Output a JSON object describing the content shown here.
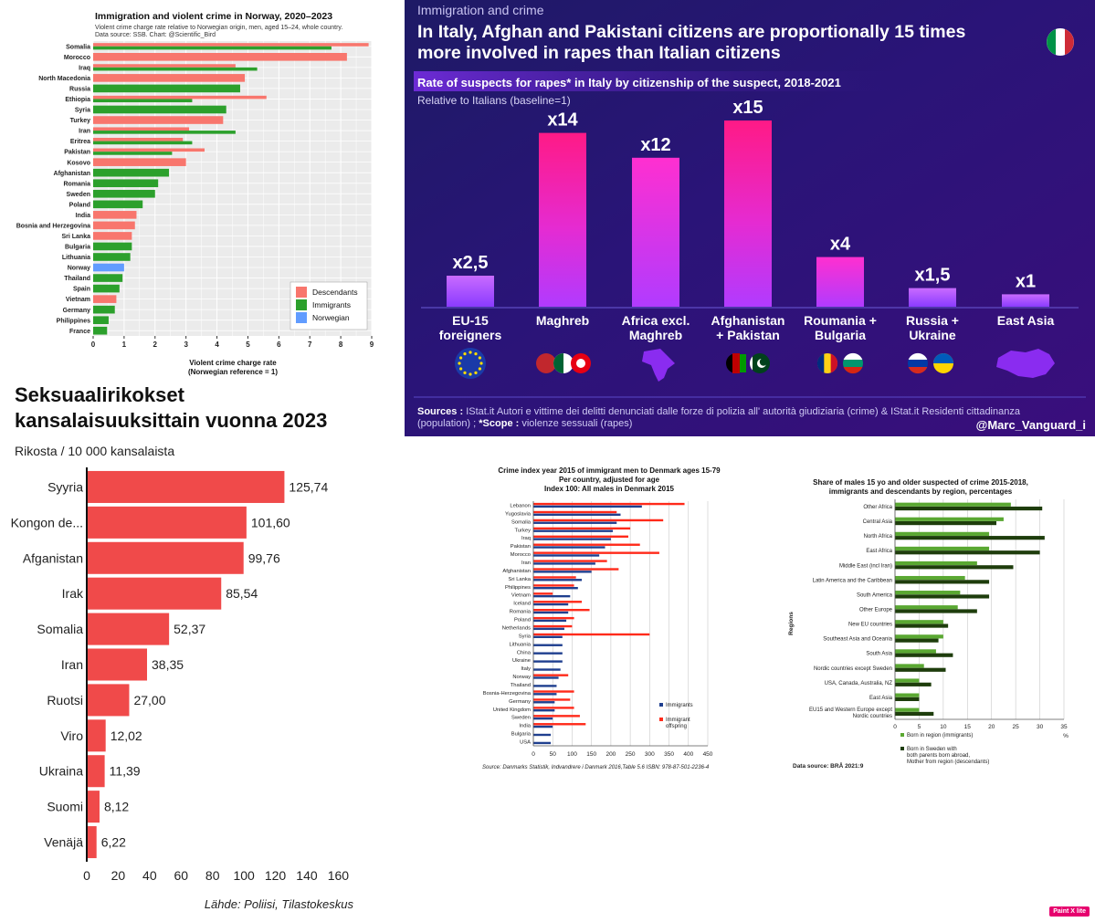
{
  "charts": {
    "norway": {
      "type": "bar",
      "title": "Immigration and violent crime in Norway, 2020–2023",
      "subtitle": "Violent crime charge rate relative to Norwegian origin, men, aged 15–24, whole country.",
      "source": "Data source: SSB.  Chart: @Scientific_Bird",
      "categories": [
        "Somalia",
        "Morocco",
        "Iraq",
        "North Macedonia",
        "Russia",
        "Ethiopia",
        "Syria",
        "Turkey",
        "Iran",
        "Eritrea",
        "Pakistan",
        "Kosovo",
        "Afghanistan",
        "Romania",
        "Sweden",
        "Poland",
        "India",
        "Bosnia and Herzegovina",
        "Sri Lanka",
        "Bulgaria",
        "Lithuania",
        "Norway",
        "Thailand",
        "Spain",
        "Vietnam",
        "Germany",
        "Philippines",
        "France"
      ],
      "series": [
        {
          "name": "Descendants",
          "color": "#f8766d",
          "values": [
            8.9,
            8.2,
            4.6,
            4.9,
            null,
            5.6,
            null,
            4.2,
            3.1,
            2.9,
            3.6,
            3.0,
            null,
            null,
            null,
            null,
            1.4,
            1.35,
            1.25,
            null,
            null,
            null,
            null,
            null,
            0.75,
            null,
            null,
            null
          ]
        },
        {
          "name": "Immigrants",
          "color": "#2ca02c",
          "values": [
            7.7,
            null,
            5.3,
            null,
            4.75,
            3.2,
            4.3,
            null,
            4.6,
            3.2,
            2.55,
            null,
            2.45,
            2.1,
            2.0,
            1.6,
            null,
            null,
            null,
            1.25,
            1.2,
            null,
            0.95,
            0.85,
            null,
            0.7,
            0.5,
            0.45
          ]
        },
        {
          "name": "Norwegian",
          "color": "#619cff",
          "values": [
            null,
            null,
            null,
            null,
            null,
            null,
            null,
            null,
            null,
            null,
            null,
            null,
            null,
            null,
            null,
            null,
            null,
            null,
            null,
            null,
            null,
            1.0,
            null,
            null,
            null,
            null,
            null,
            null
          ]
        }
      ],
      "xticks": [
        0,
        1,
        2,
        3,
        4,
        5,
        6,
        7,
        8,
        9
      ],
      "xlim": [
        0,
        9
      ],
      "xlabel": "Violent crime charge rate",
      "xlabel2": "(Norwegian reference = 1)",
      "legend": "bottom-right"
    },
    "italy": {
      "type": "bar",
      "header": "Immigration and crime",
      "title_line1": "In Italy, Afghan and Pakistani citizens are proportionally 15 times",
      "title_line2": "more involved in rapes than Italian citizens",
      "subtitle": "Rate of suspects for rapes* in Italy by citizenship of the suspect, 2018-2021",
      "subtitle2": "Relative to Italians (baseline=1)",
      "categories": [
        [
          "EU-15",
          "foreigners"
        ],
        [
          "Maghreb"
        ],
        [
          "Africa excl.",
          "Maghreb"
        ],
        [
          "Afghanistan",
          "+ Pakistan"
        ],
        [
          "Roumania +",
          "Bulgaria"
        ],
        [
          "Russia +",
          "Ukraine"
        ],
        [
          "East Asia"
        ]
      ],
      "values": [
        2.5,
        14,
        12,
        15,
        4,
        1.5,
        1
      ],
      "labels": [
        "x2,5",
        "x14",
        "x12",
        "x15",
        "x4",
        "x1,5",
        "x1"
      ],
      "icons": [
        "eu-flag-icon",
        "maghreb-flags-icon",
        "africa-map-icon",
        "afghanistan-pakistan-flags-icon",
        "romania-bulgaria-flags-icon",
        "russia-ukraine-flags-icon",
        "east-asia-map-icon"
      ],
      "sources_label": "Sources :",
      "sources_text": "IStat.it Autori e vittime dei delitti denunciati dalle forze di polizia all' autorità giudiziaria (crime) & IStat.it Residenti cittadinanza",
      "sources_text2": "(population) ;",
      "scope_label": "*Scope :",
      "scope_text": "violenze sessuali (rapes)",
      "handle": "@Marc_Vanguard_i"
    },
    "finland": {
      "type": "bar",
      "title_line1": "Seksuaalirikokset",
      "title_line2": "kansalaisuuksittain vuonna 2023",
      "subtitle": "Rikosta / 10 000 kansalaista",
      "categories": [
        "Syyria",
        "Kongon de...",
        "Afganistan",
        "Irak",
        "Somalia",
        "Iran",
        "Ruotsi",
        "Viro",
        "Ukraina",
        "Suomi",
        "Venäjä"
      ],
      "values": [
        125.74,
        101.6,
        99.76,
        85.54,
        52.37,
        38.35,
        27.0,
        12.02,
        11.39,
        8.12,
        6.22
      ],
      "value_labels": [
        "125,74",
        "101,60",
        "99,76",
        "85,54",
        "52,37",
        "38,35",
        "27,00",
        "12,02",
        "11,39",
        "8,12",
        "6,22"
      ],
      "xticks": [
        0,
        20,
        40,
        60,
        80,
        100,
        120,
        140,
        160
      ],
      "xlim": [
        0,
        165
      ],
      "source": "Lähde: Poliisi, Tilastokeskus",
      "color": "#f04a4a"
    },
    "denmark": {
      "type": "bar",
      "title_line1": "Crime index year 2015 of immigrant men to Denmark ages 15-79",
      "title_line2": "Per country, adjusted for age",
      "title_line3": "Index 100: All males in Denmark 2015",
      "categories": [
        "Lebanon",
        "Yugoslavia",
        "Somalia",
        "Turkey",
        "Iraq",
        "Pakistan",
        "Morocco",
        "Iran",
        "Afghanistan",
        "Sri Lanka",
        "Philippines",
        "Vietnam",
        "Iceland",
        "Romania",
        "Poland",
        "Netherlands",
        "Syria",
        "Lithuania",
        "China",
        "Ukraine",
        "Italy",
        "Norway",
        "Thailand",
        "Bosnia-Herzegovina",
        "Germany",
        "United Kingdom",
        "Sweden",
        "India",
        "Bulgaria",
        "USA"
      ],
      "series": [
        {
          "name": "Immigrants",
          "color": "#1f3f8f",
          "values": [
            280,
            225,
            215,
            205,
            200,
            185,
            170,
            160,
            150,
            125,
            115,
            95,
            90,
            90,
            85,
            80,
            75,
            75,
            75,
            75,
            70,
            65,
            60,
            60,
            55,
            55,
            50,
            50,
            45,
            45
          ]
        },
        {
          "name": "Immigrant offspring",
          "color": "#ff2a1a",
          "values": [
            390,
            215,
            335,
            250,
            245,
            275,
            325,
            190,
            220,
            110,
            105,
            50,
            125,
            145,
            105,
            100,
            300,
            null,
            null,
            null,
            null,
            90,
            null,
            105,
            95,
            105,
            120,
            135,
            null,
            null
          ]
        }
      ],
      "xticks": [
        0,
        50,
        100,
        150,
        200,
        250,
        300,
        350,
        400,
        450
      ],
      "xlim": [
        0,
        450
      ],
      "legend_immigrants": "Immigrants",
      "legend_offspring_line1": "Immigrant",
      "legend_offspring_line2": "offspring",
      "source": "Source: Danmarks Statistik, Indvandrere i Danmark 2016,Table 5.6 ISBN: 978-87-501-2236-4"
    },
    "sweden": {
      "type": "bar",
      "title_line1": "Share of males 15 yo and older suspected of crime 2015-2018,",
      "title_line2": "immigrants and descendants by region, percentages",
      "categories": [
        [
          "Other Africa"
        ],
        [
          "Central Asia"
        ],
        [
          "North Africa"
        ],
        [
          "East Africa"
        ],
        [
          "Middle East (incl Iran)"
        ],
        [
          "Latin America and the Caribbean"
        ],
        [
          "South America"
        ],
        [
          "Other Europe"
        ],
        [
          "New EU countries"
        ],
        [
          "Southeast Asia and Oceania"
        ],
        [
          "South Asia"
        ],
        [
          "Nordic countries except Sweden"
        ],
        [
          "USA, Canada, Australia, NZ"
        ],
        [
          "East Asia"
        ],
        [
          "EU15 and Western Europe except",
          "Nordic countries"
        ]
      ],
      "series": [
        {
          "name": "Born in region (immigrants)",
          "color": "#5aa832",
          "values": [
            24,
            22.5,
            19.5,
            19.5,
            17,
            14.5,
            13.5,
            13,
            10,
            10,
            8.5,
            6,
            5,
            5,
            5
          ]
        },
        {
          "name": "Born in Sweden with both parents born abroad, Mother from region (descendants)",
          "color": "#1e3d0c",
          "values": [
            30.5,
            21,
            31,
            30,
            24.5,
            19.5,
            19.5,
            17,
            11,
            9,
            12,
            10.5,
            7.5,
            5,
            8
          ]
        }
      ],
      "xticks": [
        0,
        5,
        10,
        15,
        20,
        25,
        30,
        35
      ],
      "xlim": [
        0,
        35
      ],
      "ylabel": "Regions",
      "xunit": "%",
      "legend1": "Born in region (immigrants)",
      "legend2_line1": "Born in Sweden with",
      "legend2_line2": "both parents born abroad,",
      "legend2_line3": "Mother from region (descendants)",
      "source": "Data source: BRÅ 2021:9"
    }
  },
  "watermark": "Paint X lite"
}
